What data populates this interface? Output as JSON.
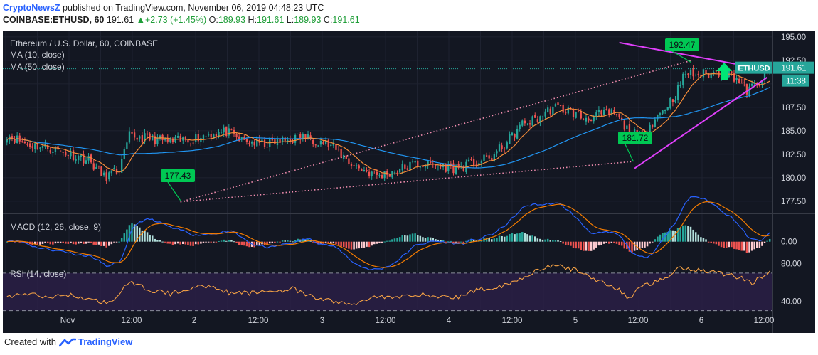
{
  "header": {
    "publisher": "CryptoNewsZ",
    "published_text": " published on TradingView.com, November 06, 2019 04:48:23 UTC",
    "symbol": "COINBASE:ETHUSD, 60",
    "last": "191.61",
    "change": "+2.73 (+1.45%)",
    "o_label": "O:",
    "o": "189.93",
    "h_label": "H:",
    "h": "191.61",
    "l_label": "L:",
    "l": "189.93",
    "c_label": "C:",
    "c": "191.61"
  },
  "footer": {
    "created_with": "Created with",
    "brand": "TradingView"
  },
  "colors": {
    "bg": "#131722",
    "up": "#26a69a",
    "down": "#ef5350",
    "ma10": "#f68d39",
    "ma50": "#2196f3",
    "macd": "#2962ff",
    "signal": "#f57c00",
    "rsi": "#f5a245",
    "trend": "#e040fb",
    "annot": "#00c853",
    "price_tag": "#26a69a",
    "dotted": "#f48fb1"
  },
  "chart_data": [
    {
      "type": "candlestick",
      "title": "Ethereum / U.S. Dollar, 60, COINBASE",
      "indicators": [
        "MA (10, close)",
        "MA (50, close)"
      ],
      "ylim": [
        176.2,
        195.6
      ],
      "y_ticks": [
        "195.00",
        "192.50",
        "187.50",
        "185.00",
        "182.50",
        "180.00",
        "177.50"
      ],
      "x_ticks": [
        "Nov",
        "12:00",
        "2",
        "12:00",
        "3",
        "12:00",
        "4",
        "12:00",
        "5",
        "12:00",
        "6",
        "12:00"
      ],
      "price_label": "ETHUSD",
      "price_value": "191.61",
      "price": 191.61,
      "countdown": "11:38",
      "annotations": [
        {
          "label": "192.47",
          "value": 192.47
        },
        {
          "label": "181.72",
          "value": 181.72
        },
        {
          "label": "177.43",
          "value": 177.43
        }
      ],
      "close_anchors": [
        [
          0,
          184.6
        ],
        [
          8,
          183.6
        ],
        [
          16,
          183.2
        ],
        [
          24,
          182.6
        ],
        [
          32,
          181.9
        ],
        [
          38,
          180.1
        ],
        [
          44,
          180.8
        ],
        [
          48,
          184.4
        ],
        [
          56,
          184.2
        ],
        [
          64,
          183.8
        ],
        [
          72,
          184.1
        ],
        [
          80,
          184.7
        ],
        [
          86,
          184.9
        ],
        [
          92,
          183.9
        ],
        [
          100,
          183.6
        ],
        [
          108,
          183.9
        ],
        [
          116,
          184.4
        ],
        [
          124,
          183.8
        ],
        [
          128,
          183.2
        ],
        [
          136,
          181.3
        ],
        [
          142,
          180.6
        ],
        [
          146,
          180.2
        ],
        [
          152,
          180.7
        ],
        [
          160,
          181.5
        ],
        [
          168,
          181.3
        ],
        [
          176,
          181.0
        ],
        [
          184,
          181.6
        ],
        [
          190,
          182.2
        ],
        [
          196,
          183.8
        ],
        [
          202,
          185.7
        ],
        [
          208,
          186.3
        ],
        [
          214,
          187.5
        ],
        [
          220,
          187.2
        ],
        [
          226,
          186.3
        ],
        [
          232,
          186.7
        ],
        [
          238,
          186.9
        ],
        [
          244,
          184.8
        ],
        [
          248,
          184.4
        ],
        [
          252,
          185.6
        ],
        [
          258,
          187.5
        ],
        [
          262,
          188.8
        ],
        [
          266,
          191.2
        ],
        [
          270,
          191.0
        ],
        [
          276,
          191.1
        ],
        [
          282,
          191.3
        ],
        [
          286,
          190.6
        ],
        [
          290,
          189.3
        ],
        [
          294,
          189.9
        ],
        [
          300,
          191.61
        ]
      ]
    },
    {
      "type": "macd",
      "title": "MACD (12, 26, close, 9)",
      "ylim": [
        -0.55,
        0.82
      ],
      "y_ticks": [
        "0.00"
      ]
    },
    {
      "type": "rsi",
      "title": "RSI (14, close)",
      "ylim": [
        32,
        82
      ],
      "y_ticks": [
        "80.00",
        "40.00"
      ],
      "bands": [
        70,
        30
      ],
      "anchors": [
        [
          0,
          45
        ],
        [
          8,
          48
        ],
        [
          16,
          44
        ],
        [
          24,
          47
        ],
        [
          32,
          42
        ],
        [
          40,
          38
        ],
        [
          48,
          60
        ],
        [
          56,
          52
        ],
        [
          64,
          48
        ],
        [
          72,
          54
        ],
        [
          80,
          57
        ],
        [
          88,
          48
        ],
        [
          96,
          49
        ],
        [
          104,
          51
        ],
        [
          112,
          53
        ],
        [
          120,
          44
        ],
        [
          128,
          40
        ],
        [
          136,
          36
        ],
        [
          144,
          46
        ],
        [
          152,
          43
        ],
        [
          160,
          48
        ],
        [
          168,
          45
        ],
        [
          176,
          44
        ],
        [
          184,
          52
        ],
        [
          192,
          55
        ],
        [
          200,
          62
        ],
        [
          208,
          74
        ],
        [
          216,
          78
        ],
        [
          224,
          72
        ],
        [
          232,
          62
        ],
        [
          240,
          52
        ],
        [
          244,
          42
        ],
        [
          248,
          56
        ],
        [
          256,
          62
        ],
        [
          264,
          76
        ],
        [
          272,
          73
        ],
        [
          280,
          70
        ],
        [
          288,
          65
        ],
        [
          292,
          60
        ],
        [
          300,
          72
        ]
      ]
    }
  ]
}
